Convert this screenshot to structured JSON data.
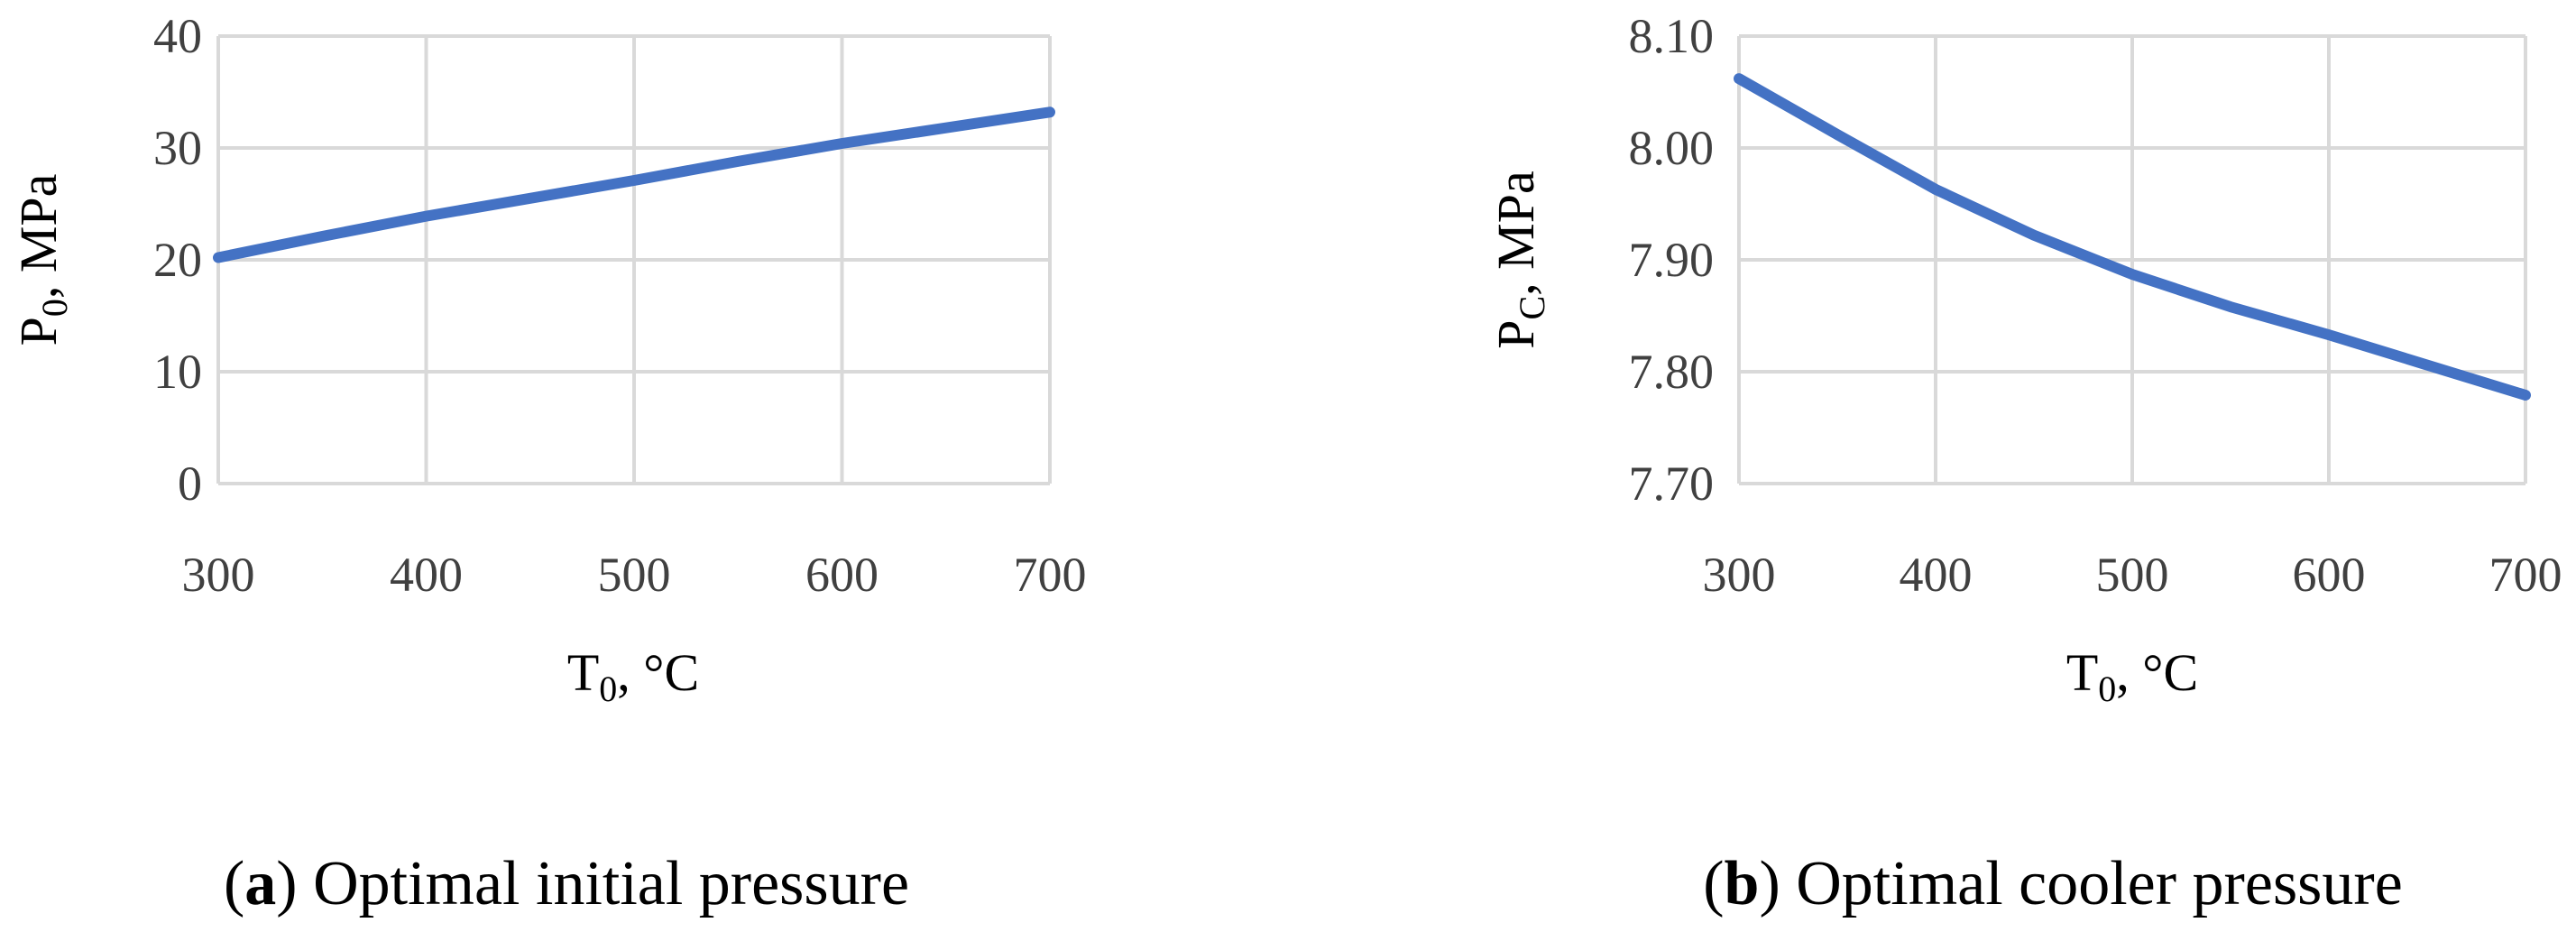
{
  "chart_data": [
    {
      "type": "line",
      "panel": "a",
      "caption_letter": "a",
      "caption_text": "Optimal initial pressure",
      "xlabel": {
        "main": "T",
        "sub": "0",
        "rest": ", °C"
      },
      "ylabel": {
        "main": "P",
        "sub": "0",
        "rest": ", MPa"
      },
      "xlim": [
        300,
        700
      ],
      "ylim": [
        0,
        40
      ],
      "xticks": [
        300,
        400,
        500,
        600,
        700
      ],
      "yticks": [
        0,
        10,
        20,
        30,
        40
      ],
      "xtick_labels": [
        "300",
        "400",
        "500",
        "600",
        "700"
      ],
      "ytick_labels": [
        "0",
        "10",
        "20",
        "30",
        "40"
      ],
      "grid": true,
      "color": "#4472c4",
      "x": [
        300,
        350,
        400,
        450,
        500,
        550,
        600,
        650,
        700
      ],
      "y": [
        20.2,
        22.1,
        23.9,
        25.5,
        27.1,
        28.8,
        30.4,
        31.8,
        33.2
      ]
    },
    {
      "type": "line",
      "panel": "b",
      "caption_letter": "b",
      "caption_text": "Optimal cooler pressure",
      "xlabel": {
        "main": "T",
        "sub": "0",
        "rest": ", °C"
      },
      "ylabel": {
        "main": "P",
        "sub": "C",
        "rest": ", MPa"
      },
      "xlim": [
        300,
        700
      ],
      "ylim": [
        7.7,
        8.1
      ],
      "xticks": [
        300,
        400,
        500,
        600,
        700
      ],
      "yticks": [
        7.7,
        7.8,
        7.9,
        8.0,
        8.1
      ],
      "xtick_labels": [
        "300",
        "400",
        "500",
        "600",
        "700"
      ],
      "ytick_labels": [
        "7.70",
        "7.80",
        "7.90",
        "8.00",
        "8.10"
      ],
      "grid": true,
      "color": "#4472c4",
      "x": [
        300,
        350,
        400,
        450,
        500,
        550,
        600,
        650,
        700
      ],
      "y": [
        8.062,
        8.012,
        7.963,
        7.922,
        7.887,
        7.858,
        7.833,
        7.806,
        7.779
      ]
    }
  ]
}
